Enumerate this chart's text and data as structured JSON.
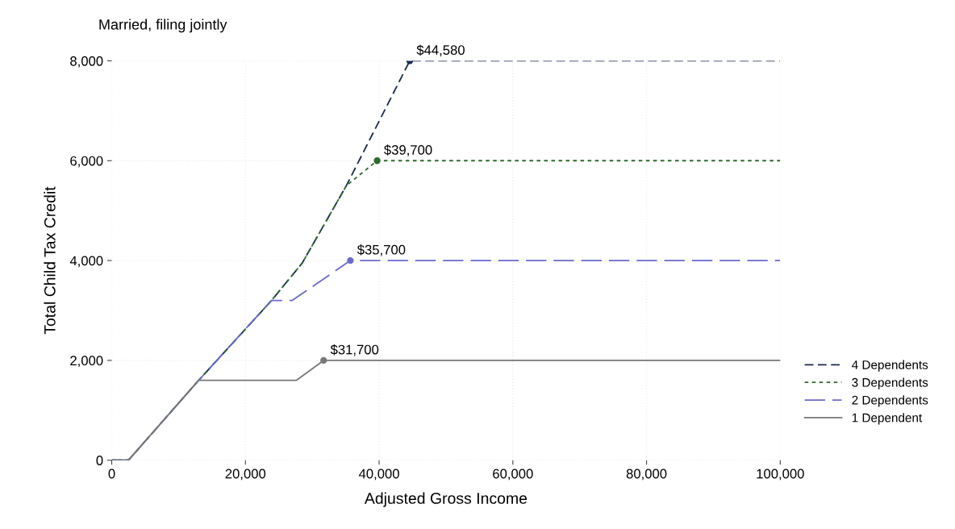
{
  "chart_data": {
    "type": "line",
    "title": "Married, filing jointly",
    "xlabel": "Adjusted Gross Income",
    "ylabel": "Total Child Tax Credit",
    "xlim": [
      0,
      100000
    ],
    "xticks": [
      {
        "value": 0,
        "label": "0"
      },
      {
        "value": 20000,
        "label": "20,000"
      },
      {
        "value": 40000,
        "label": "40,000"
      },
      {
        "value": 60000,
        "label": "60,000"
      },
      {
        "value": 80000,
        "label": "80,000"
      },
      {
        "value": 100000,
        "label": "100,000"
      }
    ],
    "ylim": [
      0,
      8000
    ],
    "yticks": [
      {
        "value": 0,
        "label": "0"
      },
      {
        "value": 2000,
        "label": "2,000"
      },
      {
        "value": 4000,
        "label": "4,000"
      },
      {
        "value": 6000,
        "label": "6,000"
      },
      {
        "value": 8000,
        "label": "8,000"
      }
    ],
    "grid": true,
    "legend": "right",
    "marker": "none",
    "series": [
      {
        "name": "4 Dependents",
        "color": "#1b2a4e",
        "line_style": "dashed",
        "x": [
          0,
          2500,
          13000,
          23900,
          28500,
          35100,
          44580,
          100000
        ],
        "values": [
          0,
          0,
          1600,
          3200,
          3950,
          5500,
          8000,
          8000
        ]
      },
      {
        "name": "3 Dependents",
        "color": "#2e6b2e",
        "line_style": "dotted",
        "x": [
          0,
          2500,
          13000,
          23900,
          28500,
          35100,
          39700,
          100000
        ],
        "values": [
          0,
          0,
          1600,
          3200,
          3950,
          5500,
          6000,
          6000
        ]
      },
      {
        "name": "2 Dependents",
        "color": "#6a6acc",
        "line_style": "longdash",
        "x": [
          0,
          2500,
          13000,
          23900,
          27000,
          35700,
          100000
        ],
        "values": [
          0,
          0,
          1600,
          3200,
          3200,
          4000,
          4000
        ]
      },
      {
        "name": "1 Dependent",
        "color": "#777777",
        "line_style": "solid",
        "x": [
          0,
          2500,
          13000,
          27600,
          31700,
          100000
        ],
        "values": [
          0,
          0,
          1600,
          1600,
          2000,
          2000
        ]
      }
    ],
    "annotations": [
      {
        "text": "$44,580",
        "x": 44580,
        "y": 8000
      },
      {
        "text": "$39,700",
        "x": 39700,
        "y": 6000
      },
      {
        "text": "$35,700",
        "x": 35700,
        "y": 4000
      },
      {
        "text": "$31,700",
        "x": 31700,
        "y": 2000
      }
    ]
  }
}
